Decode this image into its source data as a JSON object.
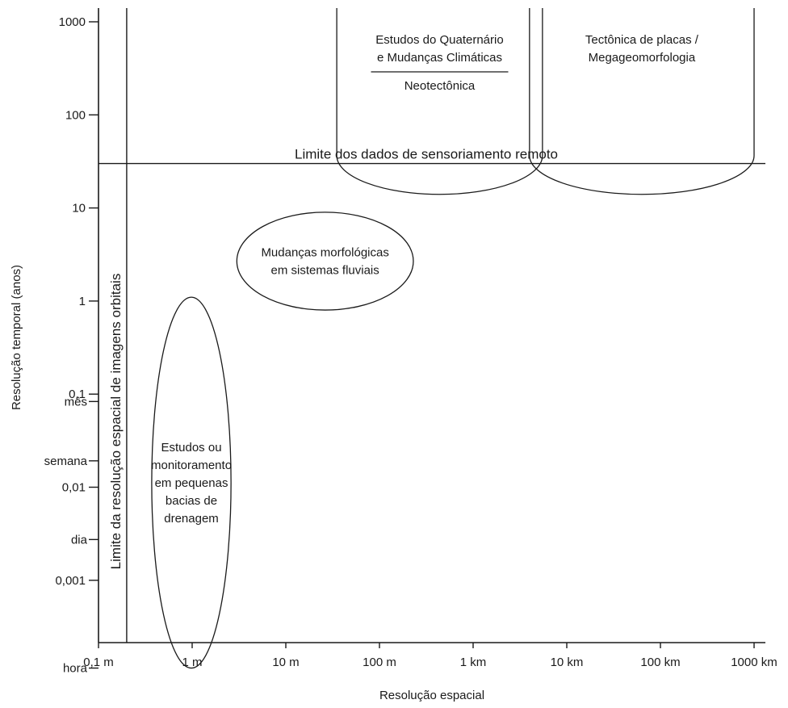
{
  "colors": {
    "ink": "#1a1a1a",
    "background": "#ffffff"
  },
  "chart_data": {
    "type": "diagram",
    "xlabel": "Resolução espacial",
    "ylabel": "Resolução temporal (anos)",
    "x_scale": "log",
    "y_scale": "log",
    "x_ticks": [
      {
        "label": "0,1 m",
        "value_m": 0.1
      },
      {
        "label": "1 m",
        "value_m": 1
      },
      {
        "label": "10 m",
        "value_m": 10
      },
      {
        "label": "100 m",
        "value_m": 100
      },
      {
        "label": "1 km",
        "value_m": 1000
      },
      {
        "label": "10 km",
        "value_m": 10000
      },
      {
        "label": "100 km",
        "value_m": 100000
      },
      {
        "label": "1000 km",
        "value_m": 1000000
      }
    ],
    "y_ticks": [
      {
        "label": "1000",
        "value_years": 1000
      },
      {
        "label": "100",
        "value_years": 100
      },
      {
        "label": "10",
        "value_years": 10
      },
      {
        "label": "1",
        "value_years": 1
      },
      {
        "label": "0,1",
        "value_years": 0.1
      },
      {
        "label": "0,01",
        "value_years": 0.01
      },
      {
        "label": "0,001",
        "value_years": 0.001
      }
    ],
    "y_named_ticks": [
      {
        "label": "mês",
        "value_years": 0.0833
      },
      {
        "label": "semana",
        "value_years": 0.0192
      },
      {
        "label": "dia",
        "value_years": 0.00274
      },
      {
        "label": "hora",
        "value_years": 0.000114
      }
    ],
    "limits": {
      "remote_sensing": {
        "label": "Limite dos dados de sensoriamento remoto",
        "value_years": 30
      },
      "orbital": {
        "label": "Limite da resolução espacial de imagens orbitais",
        "value_m": 0.2
      }
    },
    "regions": [
      {
        "id": "quaternario",
        "lines": [
          "Estudos do Quaternário",
          "e Mudanças Climáticas"
        ],
        "sub_label": "Neotectônica",
        "x_range_m": [
          35,
          5500
        ],
        "y_range_years": [
          14,
          1000
        ]
      },
      {
        "id": "tectonica",
        "lines": [
          "Tectônica de placas /",
          "Megageomorfologia"
        ],
        "x_range_m": [
          4000,
          1000000
        ],
        "y_range_years": [
          14,
          1000
        ]
      },
      {
        "id": "fluviais",
        "lines": [
          "Mudanças morfológicas",
          "em sistemas fluviais"
        ],
        "x_range_m": [
          3,
          230
        ],
        "y_range_years": [
          0.8,
          9
        ]
      },
      {
        "id": "bacias",
        "lines": [
          "Estudos ou",
          "monitoramento",
          "em pequenas",
          "bacias de",
          "drenagem"
        ],
        "x_range_m": [
          0.37,
          2.6
        ],
        "y_range_years": [
          0.000114,
          1.1
        ]
      }
    ]
  }
}
